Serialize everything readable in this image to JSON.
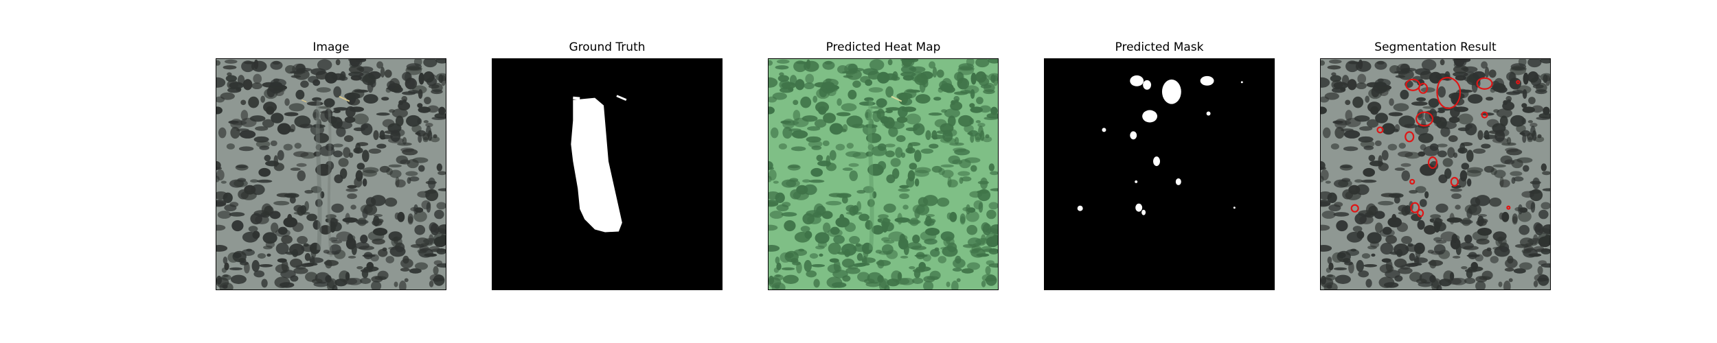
{
  "panels": [
    {
      "title": "Image"
    },
    {
      "title": "Ground Truth"
    },
    {
      "title": "Predicted Heat Map"
    },
    {
      "title": "Predicted Mask"
    },
    {
      "title": "Segmentation Result"
    }
  ],
  "colors": {
    "texture_base": "#8f9893",
    "texture_spot": "#2f3331",
    "heatmap_base": "#7fbf86",
    "heatmap_spot": "#3f7348",
    "mask_bg": "#000000",
    "mask_fg": "#ffffff",
    "contour": "#e01515"
  }
}
